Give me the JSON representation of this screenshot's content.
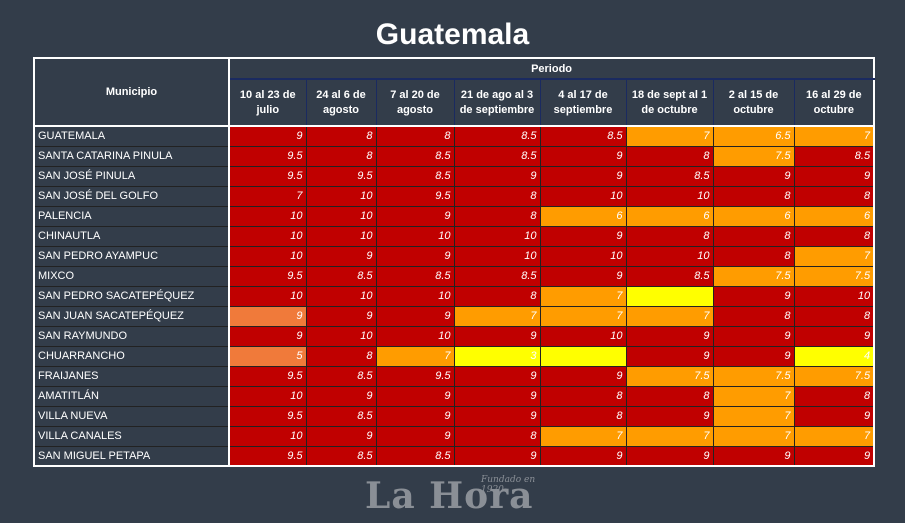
{
  "title": "Guatemala",
  "header": {
    "municipio": "Municipio",
    "periodo": "Periodo",
    "periods": [
      "10 al 23 de julio",
      "24 al 6 de agosto",
      "7 al 20 de agosto",
      "21 de ago al 3 de septiembre",
      "4 al 17 de septiembre",
      "18 de sept al 1 de octubre",
      "2 al 15 de octubre",
      "16 al 29 de octubre"
    ]
  },
  "colors": {
    "red": "#c00000",
    "orange": "#ff9c00",
    "light_orange": "#f07a3a",
    "yellow": "#ffff00",
    "background": "#333d4a"
  },
  "rows": [
    {
      "name": "GUATEMALA",
      "values": [
        "9",
        "8",
        "8",
        "8.5",
        "8.5",
        "7",
        "6.5",
        "7"
      ],
      "colors": [
        "red",
        "red",
        "red",
        "red",
        "red",
        "orange",
        "orange",
        "orange"
      ]
    },
    {
      "name": "SANTA CATARINA PINULA",
      "values": [
        "9.5",
        "8",
        "8.5",
        "8.5",
        "9",
        "8",
        "7.5",
        "8.5"
      ],
      "colors": [
        "red",
        "red",
        "red",
        "red",
        "red",
        "red",
        "orange",
        "red"
      ]
    },
    {
      "name": "SAN JOSÉ PINULA",
      "values": [
        "9.5",
        "9.5",
        "8.5",
        "9",
        "9",
        "8.5",
        "9",
        "9"
      ],
      "colors": [
        "red",
        "red",
        "red",
        "red",
        "red",
        "red",
        "red",
        "red"
      ]
    },
    {
      "name": "SAN JOSÉ DEL GOLFO",
      "values": [
        "7",
        "10",
        "9.5",
        "8",
        "10",
        "10",
        "8",
        "8"
      ],
      "colors": [
        "red",
        "red",
        "red",
        "red",
        "red",
        "red",
        "red",
        "red"
      ]
    },
    {
      "name": "PALENCIA",
      "values": [
        "10",
        "10",
        "9",
        "8",
        "6",
        "6",
        "6",
        "6"
      ],
      "colors": [
        "red",
        "red",
        "red",
        "red",
        "orange",
        "orange",
        "orange",
        "orange"
      ]
    },
    {
      "name": "CHINAUTLA",
      "values": [
        "10",
        "10",
        "10",
        "10",
        "9",
        "8",
        "8",
        "8"
      ],
      "colors": [
        "red",
        "red",
        "red",
        "red",
        "red",
        "red",
        "red",
        "red"
      ]
    },
    {
      "name": "SAN PEDRO AYAMPUC",
      "values": [
        "10",
        "9",
        "9",
        "10",
        "10",
        "10",
        "8",
        "7"
      ],
      "colors": [
        "red",
        "red",
        "red",
        "red",
        "red",
        "red",
        "red",
        "orange"
      ]
    },
    {
      "name": "MIXCO",
      "values": [
        "9.5",
        "8.5",
        "8.5",
        "8.5",
        "9",
        "8.5",
        "7.5",
        "7.5"
      ],
      "colors": [
        "red",
        "red",
        "red",
        "red",
        "red",
        "red",
        "orange",
        "orange"
      ]
    },
    {
      "name": "SAN PEDRO SACATEPÉQUEZ",
      "values": [
        "10",
        "10",
        "10",
        "8",
        "7",
        "",
        "9",
        "10"
      ],
      "colors": [
        "red",
        "red",
        "red",
        "red",
        "orange",
        "yellow",
        "red",
        "red"
      ]
    },
    {
      "name": "SAN JUAN SACATEPÉQUEZ",
      "values": [
        "9",
        "9",
        "9",
        "7",
        "7",
        "7",
        "8",
        "8"
      ],
      "colors": [
        "light_orange",
        "red",
        "red",
        "orange",
        "orange",
        "orange",
        "red",
        "red"
      ]
    },
    {
      "name": "SAN RAYMUNDO",
      "values": [
        "9",
        "10",
        "10",
        "9",
        "10",
        "9",
        "9",
        "9"
      ],
      "colors": [
        "red",
        "red",
        "red",
        "red",
        "red",
        "red",
        "red",
        "red"
      ]
    },
    {
      "name": "CHUARRANCHO",
      "values": [
        "5",
        "8",
        "7",
        "3",
        "",
        "9",
        "9",
        "4"
      ],
      "colors": [
        "light_orange",
        "red",
        "orange",
        "yellow",
        "yellow",
        "red",
        "red",
        "yellow"
      ]
    },
    {
      "name": "FRAIJANES",
      "values": [
        "9.5",
        "8.5",
        "9.5",
        "9",
        "9",
        "7.5",
        "7.5",
        "7.5"
      ],
      "colors": [
        "red",
        "red",
        "red",
        "red",
        "red",
        "orange",
        "orange",
        "orange"
      ]
    },
    {
      "name": "AMATITLÁN",
      "values": [
        "10",
        "9",
        "9",
        "9",
        "8",
        "8",
        "7",
        "8"
      ],
      "colors": [
        "red",
        "red",
        "red",
        "red",
        "red",
        "red",
        "orange",
        "red"
      ]
    },
    {
      "name": "VILLA NUEVA",
      "values": [
        "9.5",
        "8.5",
        "9",
        "9",
        "8",
        "9",
        "7",
        "9"
      ],
      "colors": [
        "red",
        "red",
        "red",
        "red",
        "red",
        "red",
        "orange",
        "red"
      ]
    },
    {
      "name": "VILLA CANALES",
      "values": [
        "10",
        "9",
        "9",
        "8",
        "7",
        "7",
        "7",
        "7"
      ],
      "colors": [
        "red",
        "red",
        "red",
        "red",
        "orange",
        "orange",
        "orange",
        "orange"
      ]
    },
    {
      "name": "SAN MIGUEL PETAPA",
      "values": [
        "9.5",
        "8.5",
        "8.5",
        "9",
        "9",
        "9",
        "9",
        "9"
      ],
      "colors": [
        "red",
        "red",
        "red",
        "red",
        "red",
        "red",
        "red",
        "red"
      ]
    }
  ],
  "logo": {
    "name": "La Hora",
    "tagline": "Fundado en 1920"
  }
}
